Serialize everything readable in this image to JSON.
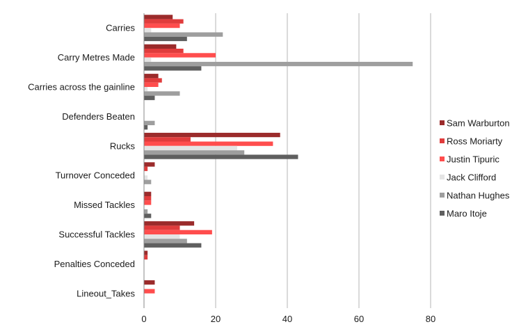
{
  "chart_data": {
    "type": "bar",
    "orientation": "horizontal",
    "title": "",
    "xlabel": "",
    "ylabel": "",
    "xlim": [
      0,
      80
    ],
    "xticks": [
      0,
      20,
      40,
      60,
      80
    ],
    "grid": "vertical",
    "legend_position": "right",
    "categories": [
      "Carries",
      "Carry Metres Made",
      "Carries across the gainline",
      "Defenders Beaten",
      "Rucks",
      "Turnover Conceded",
      "Missed Tackles",
      "Successful Tackles",
      "Penalties Conceded",
      "Lineout_Takes"
    ],
    "series": [
      {
        "name": "Sam Warburton",
        "color": "#9b2b2b",
        "values": [
          8,
          9,
          4,
          0,
          38,
          3,
          2,
          14,
          1,
          3
        ]
      },
      {
        "name": "Ross Moriarty",
        "color": "#e03c3c",
        "values": [
          11,
          11,
          5,
          0,
          13,
          1,
          2,
          10,
          1,
          0
        ]
      },
      {
        "name": "Justin Tipuric",
        "color": "#ff4d4d",
        "values": [
          10,
          20,
          4,
          0,
          36,
          0,
          2,
          19,
          0,
          3
        ]
      },
      {
        "name": "Jack Clifford",
        "color": "#e4e4e4",
        "values": [
          2,
          2,
          1,
          0,
          26,
          1,
          0,
          10,
          0,
          0
        ]
      },
      {
        "name": "Nathan Hughes",
        "color": "#9e9e9e",
        "values": [
          22,
          75,
          10,
          3,
          28,
          2,
          1,
          12,
          0,
          0
        ]
      },
      {
        "name": "Maro Itoje",
        "color": "#5f5f5f",
        "values": [
          12,
          16,
          3,
          1,
          43,
          0,
          2,
          16,
          0,
          0
        ]
      }
    ]
  }
}
